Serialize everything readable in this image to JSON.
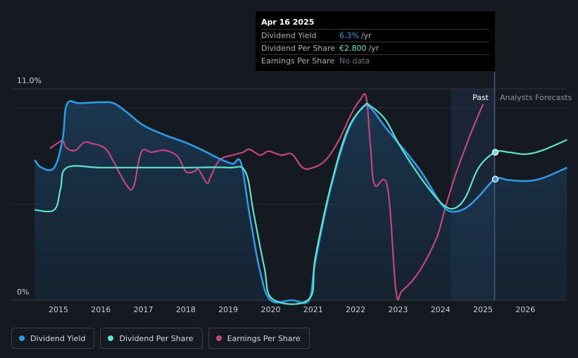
{
  "chart_data": {
    "type": "line",
    "y_max_label": "11.0%",
    "y_min_label": "0%",
    "ylim": [
      0,
      11
    ],
    "x_ticks": [
      "2015",
      "2016",
      "2017",
      "2018",
      "2019",
      "2020",
      "2021",
      "2022",
      "2023",
      "2024",
      "2025",
      "2026"
    ],
    "past_label": "Past",
    "forecast_label": "Analysts Forecasts",
    "series": [
      {
        "name": "Dividend Yield",
        "color": "#2d9ae6",
        "points": [
          [
            2014.44,
            7.3
          ],
          [
            2014.6,
            6.9
          ],
          [
            2014.9,
            6.9
          ],
          [
            2015.1,
            8.4
          ],
          [
            2015.2,
            10.2
          ],
          [
            2015.5,
            10.25
          ],
          [
            2016.0,
            10.3
          ],
          [
            2016.3,
            10.25
          ],
          [
            2016.6,
            9.8
          ],
          [
            2017.0,
            9.1
          ],
          [
            2017.5,
            8.6
          ],
          [
            2018.0,
            8.2
          ],
          [
            2018.4,
            7.8
          ],
          [
            2018.8,
            7.35
          ],
          [
            2019.1,
            7.1
          ],
          [
            2019.3,
            7.15
          ],
          [
            2019.5,
            4.5
          ],
          [
            2019.75,
            1.5
          ],
          [
            2020.0,
            0.0
          ],
          [
            2020.5,
            0.0
          ],
          [
            2020.9,
            0.0
          ],
          [
            2021.05,
            2.0
          ],
          [
            2021.4,
            5.7
          ],
          [
            2021.8,
            8.7
          ],
          [
            2022.15,
            10.0
          ],
          [
            2022.35,
            10.0
          ],
          [
            2022.7,
            9.0
          ],
          [
            2023.0,
            8.2
          ],
          [
            2023.3,
            7.4
          ],
          [
            2023.6,
            6.5
          ],
          [
            2023.9,
            5.4
          ],
          [
            2024.1,
            4.8
          ],
          [
            2024.3,
            4.6
          ],
          [
            2024.6,
            4.8
          ],
          [
            2024.9,
            5.4
          ],
          [
            2025.29,
            6.3
          ],
          [
            2025.6,
            6.25
          ],
          [
            2026.0,
            6.2
          ],
          [
            2026.4,
            6.35
          ],
          [
            2026.98,
            6.9
          ]
        ]
      },
      {
        "name": "Dividend Per Share",
        "color": "#5de4cc",
        "points": [
          [
            2014.44,
            4.7
          ],
          [
            2014.9,
            4.7
          ],
          [
            2015.05,
            5.8
          ],
          [
            2015.2,
            6.9
          ],
          [
            2016.0,
            6.9
          ],
          [
            2017.0,
            6.9
          ],
          [
            2018.0,
            6.9
          ],
          [
            2019.0,
            6.9
          ],
          [
            2019.4,
            6.7
          ],
          [
            2019.6,
            4.5
          ],
          [
            2019.85,
            1.7
          ],
          [
            2020.05,
            0.05
          ],
          [
            2020.9,
            0.05
          ],
          [
            2021.05,
            2.2
          ],
          [
            2021.4,
            5.8
          ],
          [
            2021.8,
            8.8
          ],
          [
            2022.2,
            10.1
          ],
          [
            2022.35,
            10.1
          ],
          [
            2022.7,
            9.4
          ],
          [
            2023.0,
            8.2
          ],
          [
            2023.4,
            6.8
          ],
          [
            2023.8,
            5.6
          ],
          [
            2024.1,
            4.9
          ],
          [
            2024.35,
            4.8
          ],
          [
            2024.6,
            5.4
          ],
          [
            2024.9,
            6.9
          ],
          [
            2025.29,
            7.7
          ],
          [
            2025.6,
            7.7
          ],
          [
            2026.0,
            7.6
          ],
          [
            2026.4,
            7.8
          ],
          [
            2026.98,
            8.35
          ]
        ]
      },
      {
        "name": "Earnings Per Share",
        "color": "#c2457e",
        "points": [
          [
            2014.8,
            7.9
          ],
          [
            2015.0,
            8.2
          ],
          [
            2015.1,
            8.3
          ],
          [
            2015.2,
            7.9
          ],
          [
            2015.4,
            7.8
          ],
          [
            2015.6,
            8.2
          ],
          [
            2015.8,
            8.15
          ],
          [
            2016.1,
            7.9
          ],
          [
            2016.3,
            7.2
          ],
          [
            2016.6,
            6.0
          ],
          [
            2016.77,
            5.9
          ],
          [
            2016.95,
            7.7
          ],
          [
            2017.2,
            7.7
          ],
          [
            2017.5,
            7.8
          ],
          [
            2017.8,
            7.5
          ],
          [
            2018.0,
            6.7
          ],
          [
            2018.2,
            6.7
          ],
          [
            2018.3,
            6.8
          ],
          [
            2018.5,
            6.1
          ],
          [
            2018.6,
            6.5
          ],
          [
            2018.8,
            7.3
          ],
          [
            2019.1,
            7.55
          ],
          [
            2019.35,
            7.7
          ],
          [
            2019.5,
            7.85
          ],
          [
            2019.75,
            7.55
          ],
          [
            2019.95,
            7.75
          ],
          [
            2020.25,
            7.55
          ],
          [
            2020.5,
            7.6
          ],
          [
            2020.75,
            6.9
          ],
          [
            2021.0,
            6.9
          ],
          [
            2021.3,
            7.3
          ],
          [
            2021.6,
            8.3
          ],
          [
            2021.9,
            9.7
          ],
          [
            2022.1,
            10.4
          ],
          [
            2022.25,
            10.55
          ],
          [
            2022.35,
            8.0
          ],
          [
            2022.45,
            6.0
          ],
          [
            2022.75,
            5.9
          ],
          [
            2022.95,
            0.5
          ],
          [
            2023.1,
            0.5
          ],
          [
            2023.5,
            1.5
          ],
          [
            2023.9,
            3.2
          ],
          [
            2024.1,
            4.7
          ],
          [
            2024.35,
            6.5
          ],
          [
            2024.7,
            8.6
          ],
          [
            2025.0,
            10.2
          ]
        ]
      }
    ]
  },
  "tooltip": {
    "date": "Apr 16 2025",
    "rows": [
      {
        "label": "Dividend Yield",
        "value": "6.3%",
        "unit": "/yr",
        "value_color": "#2d9ae6"
      },
      {
        "label": "Dividend Per Share",
        "value": "€2.800",
        "unit": "/yr",
        "value_color": "#5de4cc"
      },
      {
        "label": "Earnings Per Share",
        "value": "No data"
      }
    ]
  },
  "legend": [
    {
      "label": "Dividend Yield",
      "color": "#2d9ae6"
    },
    {
      "label": "Dividend Per Share",
      "color": "#5de4cc"
    },
    {
      "label": "Earnings Per Share",
      "color": "#c2457e"
    }
  ]
}
